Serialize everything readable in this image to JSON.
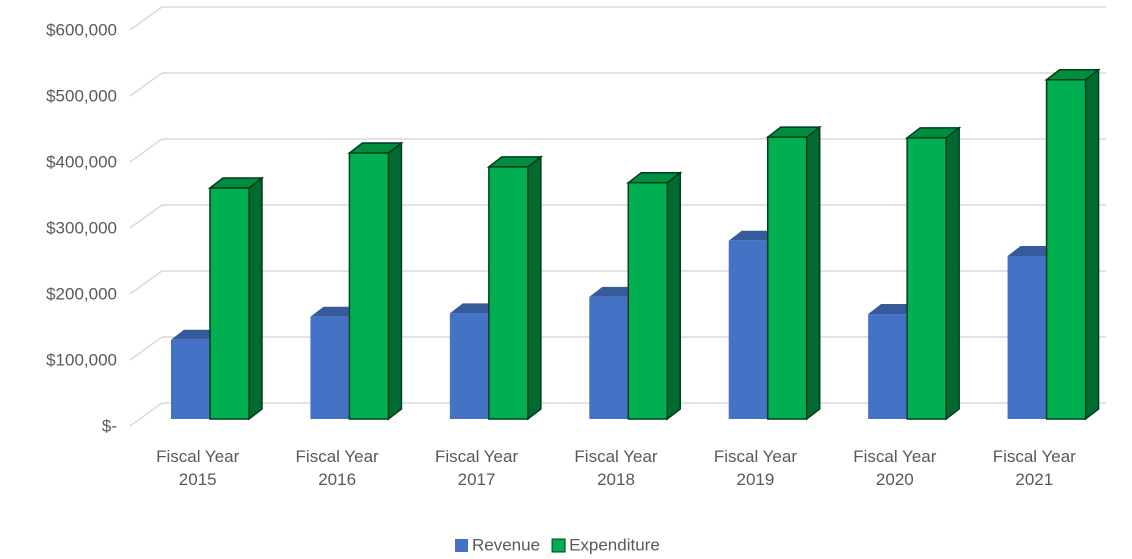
{
  "chart_data": {
    "type": "bar3d",
    "categories": [
      "Fiscal Year 2015",
      "Fiscal Year 2016",
      "Fiscal Year 2017",
      "Fiscal Year 2018",
      "Fiscal Year 2019",
      "Fiscal Year 2020",
      "Fiscal Year 2021"
    ],
    "series": [
      {
        "name": "Revenue",
        "color": "#4472c4",
        "values": [
          120000,
          155000,
          160000,
          185000,
          270000,
          159000,
          247000
        ]
      },
      {
        "name": "Expenditure",
        "color": "#00b050",
        "values": [
          350000,
          403000,
          382000,
          358000,
          427000,
          426000,
          514000
        ]
      }
    ],
    "ylim": [
      0,
      600000
    ],
    "yticks": [
      {
        "value": 0,
        "label": "$-"
      },
      {
        "value": 100000,
        "label": "$100,000"
      },
      {
        "value": 200000,
        "label": "$200,000"
      },
      {
        "value": 300000,
        "label": "$300,000"
      },
      {
        "value": 400000,
        "label": "$400,000"
      },
      {
        "value": 500000,
        "label": "$500,000"
      },
      {
        "value": 600000,
        "label": "$600,000"
      }
    ],
    "grid": true,
    "legend": "bottom"
  }
}
